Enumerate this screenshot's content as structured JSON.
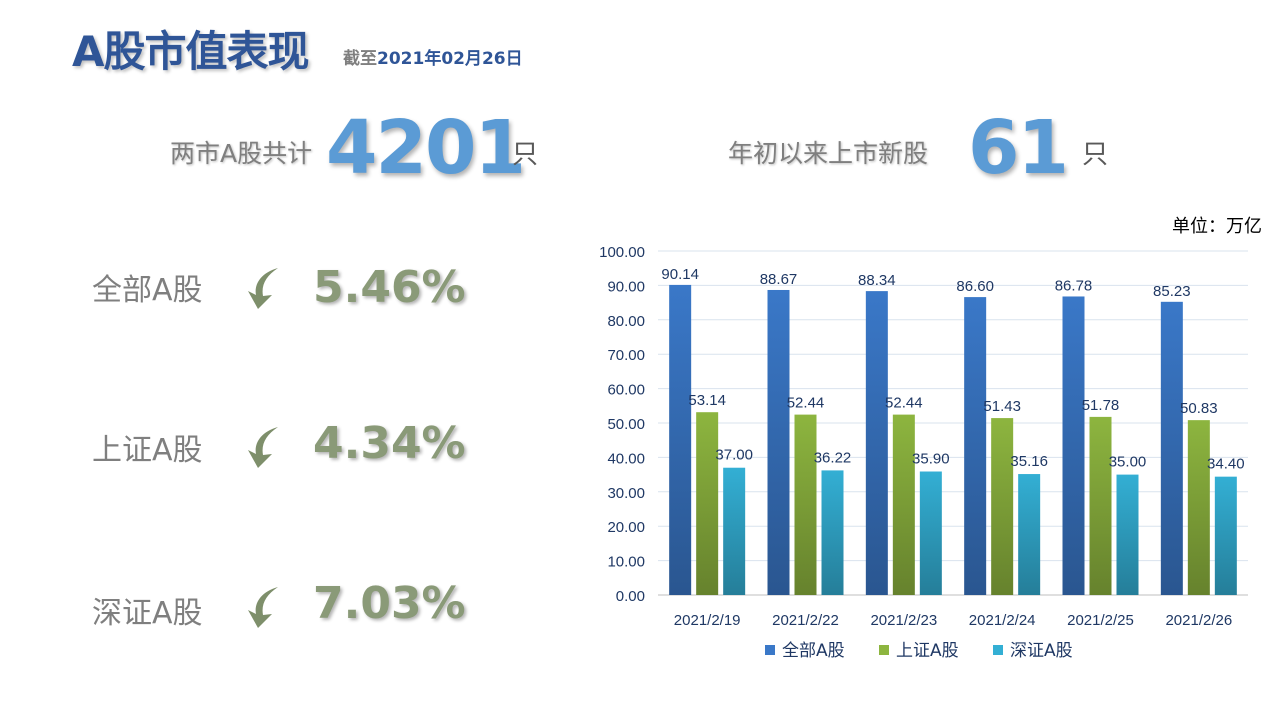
{
  "header": {
    "title": "A股市值表现",
    "as_of_prefix": "截至",
    "as_of_date": "2021年02月26日"
  },
  "stats": {
    "total_label": "两市A股共计",
    "total_value": "4201",
    "total_unit": "只",
    "new_label": "年初以来上市新股",
    "new_value": "61",
    "new_unit": "只"
  },
  "performance": [
    {
      "label": "全部A股",
      "direction": "down",
      "value": "5.46%"
    },
    {
      "label": "上证A股",
      "direction": "down",
      "value": "4.34%"
    },
    {
      "label": "深证A股",
      "direction": "down",
      "value": "7.03%"
    }
  ],
  "colors": {
    "arrow": "#7e8f6b",
    "series": [
      "#3a78c8",
      "#8db53f",
      "#33afd4"
    ]
  },
  "chart_unit": "单位：万亿",
  "chart_data": {
    "type": "bar",
    "categories": [
      "2021/2/19",
      "2021/2/22",
      "2021/2/23",
      "2021/2/24",
      "2021/2/25",
      "2021/2/26"
    ],
    "series": [
      {
        "name": "全部A股",
        "values": [
          90.14,
          88.67,
          88.34,
          86.6,
          86.78,
          85.23
        ]
      },
      {
        "name": "上证A股",
        "values": [
          53.14,
          52.44,
          52.44,
          51.43,
          51.78,
          50.83
        ]
      },
      {
        "name": "深证A股",
        "values": [
          37.0,
          36.22,
          35.9,
          35.16,
          35.0,
          34.4
        ]
      }
    ],
    "ylim": [
      0,
      100
    ],
    "ytick_step": 10,
    "grid": true,
    "legend": "bottom"
  }
}
